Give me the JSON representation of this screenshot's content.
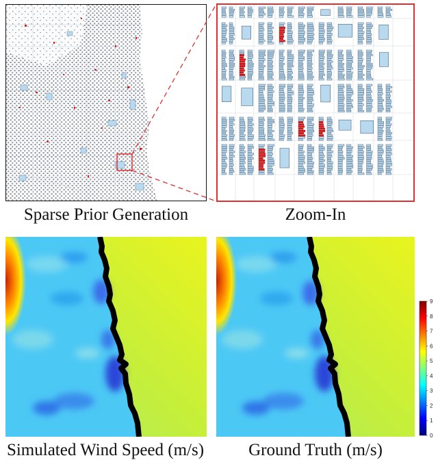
{
  "captions": {
    "sparse": "Sparse Prior Generation",
    "zoom": "Zoom-In",
    "simulated": "Simulated Wind Speed (m/s)",
    "truth": "Ground Truth (m/s)"
  },
  "colorbar": {
    "ticks": [
      "9",
      "8",
      "7",
      "6",
      "5",
      "4",
      "3",
      "2",
      "1",
      "0"
    ],
    "colormap": [
      "#00007f",
      "#0000ff",
      "#007fff",
      "#00ffff",
      "#7fff7f",
      "#ffff00",
      "#ff7f00",
      "#ff0000",
      "#7f0000"
    ]
  },
  "colors": {
    "building_fill": "#b9d9ef",
    "building_stroke": "#2a4a6a",
    "highlight": "#e41a1c",
    "zoom_frame": "#e03030",
    "coastline": "#000000"
  }
}
